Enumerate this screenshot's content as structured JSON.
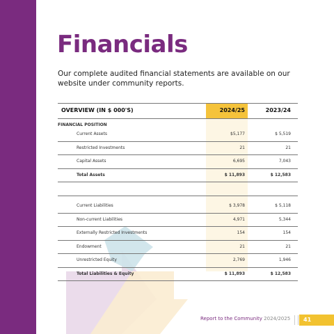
{
  "header": {
    "title": "Financials",
    "intro": "Our complete audited financial statements are available on our website under community reports."
  },
  "table": {
    "columns": [
      "OVERVIEW (IN $ 000'S)",
      "2024/25",
      "2023/24"
    ],
    "section": "FINANCIAL POSITION",
    "groups": [
      [
        [
          "Current Assets",
          "$5,177",
          "$ 5,519"
        ],
        [
          "Restricted Investments",
          "21",
          "21"
        ],
        [
          "Capital Assets",
          "6,695",
          "7,043"
        ],
        [
          "Total Assets",
          "$ 11,893",
          "$ 12,583"
        ]
      ],
      [
        [
          "Current Liabilities",
          "$ 3,978",
          "$ 5,118"
        ],
        [
          "Non-current Liabilities",
          "4,971",
          "5,344"
        ],
        [
          "Externally Restricted Investments",
          "154",
          "154"
        ],
        [
          "Endowment",
          "21",
          "21"
        ],
        [
          "Unrestricted Equity",
          "2,769",
          "1,946"
        ],
        [
          "Total Liabilities & Equity",
          "$ 11,893",
          "$ 12,583"
        ]
      ]
    ]
  },
  "footer": {
    "report": "Report to the Community",
    "year": "2024/2025",
    "page": "41"
  }
}
